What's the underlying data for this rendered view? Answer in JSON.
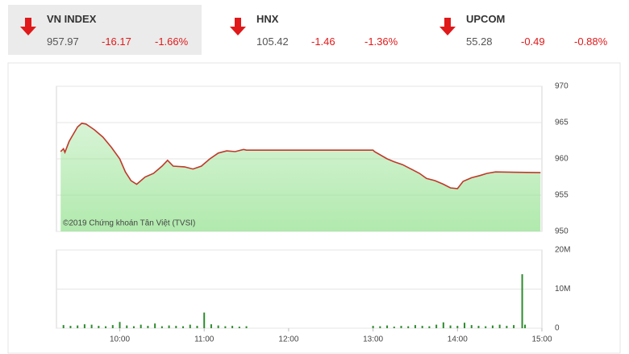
{
  "indices": [
    {
      "name": "VN INDEX",
      "price": "957.97",
      "change": "-16.17",
      "percent": "-1.66%"
    },
    {
      "name": "HNX",
      "price": "105.42",
      "change": "-1.46",
      "percent": "-1.36%"
    },
    {
      "name": "UPCOM",
      "price": "55.28",
      "change": "-0.49",
      "percent": "-0.88%"
    }
  ],
  "chart_data": [
    {
      "type": "area",
      "annotation": "©2019 Chứng khoán Tân Việt (TVSI)",
      "x": [
        "09:18",
        "09:20",
        "09:21",
        "09:24",
        "09:27",
        "09:30",
        "09:33",
        "09:36",
        "09:39",
        "09:42",
        "09:48",
        "09:54",
        "10:00",
        "10:04",
        "10:08",
        "10:12",
        "10:18",
        "10:24",
        "10:30",
        "10:34",
        "10:38",
        "10:46",
        "10:52",
        "10:58",
        "11:04",
        "11:10",
        "11:16",
        "11:22",
        "11:28",
        "11:30",
        "13:00",
        "13:01",
        "13:10",
        "13:15",
        "13:21",
        "13:27",
        "13:33",
        "13:38",
        "13:44",
        "13:50",
        "13:55",
        "14:00",
        "14:04",
        "14:10",
        "14:16",
        "14:21",
        "14:27",
        "14:59"
      ],
      "values": [
        961.0,
        961.4,
        960.9,
        962.4,
        963.4,
        964.4,
        964.9,
        964.8,
        964.4,
        964.0,
        963.0,
        961.6,
        960.0,
        958.2,
        957.0,
        956.5,
        957.5,
        958.0,
        959.0,
        959.8,
        959.0,
        958.9,
        958.6,
        959.0,
        960.0,
        960.8,
        961.1,
        961.0,
        961.3,
        961.2,
        961.2,
        961.0,
        960.0,
        959.6,
        959.2,
        958.6,
        958.0,
        957.3,
        957.0,
        956.5,
        956.0,
        955.9,
        956.9,
        957.4,
        957.7,
        958.0,
        958.2,
        958.1
      ],
      "color": "#c0392b",
      "fill_color": "#8fe08a",
      "xlim": [
        "09:15",
        "15:00"
      ],
      "ylim": [
        950,
        970
      ],
      "yticks": [
        950,
        955,
        960,
        965,
        970
      ],
      "grid": true
    },
    {
      "type": "bar",
      "x": [
        "09:20",
        "09:25",
        "09:30",
        "09:35",
        "09:40",
        "09:45",
        "09:50",
        "09:55",
        "10:00",
        "10:05",
        "10:10",
        "10:15",
        "10:20",
        "10:25",
        "10:30",
        "10:35",
        "10:40",
        "10:45",
        "10:50",
        "10:55",
        "11:00",
        "11:05",
        "11:10",
        "11:15",
        "11:20",
        "11:25",
        "11:30",
        "13:00",
        "13:05",
        "13:10",
        "13:15",
        "13:20",
        "13:25",
        "13:30",
        "13:35",
        "13:40",
        "13:45",
        "13:50",
        "13:55",
        "14:00",
        "14:05",
        "14:10",
        "14:15",
        "14:20",
        "14:25",
        "14:30",
        "14:35",
        "14:40",
        "14:46",
        "14:48"
      ],
      "values": [
        800000,
        600000,
        700000,
        1000000,
        900000,
        600000,
        500000,
        800000,
        1600000,
        700000,
        500000,
        900000,
        600000,
        1200000,
        500000,
        700000,
        600000,
        500000,
        900000,
        600000,
        4000000,
        1000000,
        700000,
        500000,
        600000,
        400000,
        500000,
        600000,
        500000,
        700000,
        400000,
        600000,
        500000,
        800000,
        600000,
        500000,
        900000,
        1500000,
        700000,
        600000,
        1400000,
        800000,
        600000,
        500000,
        700000,
        900000,
        600000,
        800000,
        13800000,
        900000
      ],
      "color": "#2e8b2e",
      "xlim": [
        "09:15",
        "15:00"
      ],
      "xticks": [
        "10:00",
        "11:00",
        "12:00",
        "13:00",
        "14:00",
        "15:00"
      ],
      "ylim": [
        0,
        20000000
      ],
      "yticks": [
        0,
        {
          "value": 10000000,
          "label": "10M"
        },
        {
          "value": 20000000,
          "label": "20M"
        }
      ],
      "grid": true
    }
  ]
}
